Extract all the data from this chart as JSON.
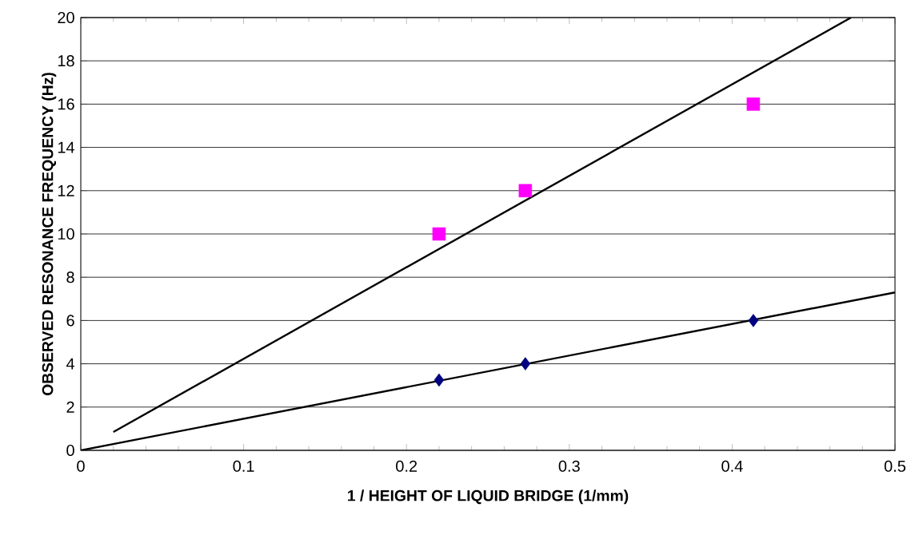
{
  "chart_data": {
    "type": "scatter",
    "xlabel": "1 / HEIGHT OF LIQUID BRIDGE (1/mm)",
    "ylabel": "OBSERVED RESONANCE FREQUENCY (Hz)",
    "xlim": [
      0,
      0.5
    ],
    "ylim": [
      0,
      20
    ],
    "xticks": [
      0,
      0.1,
      0.2,
      0.3,
      0.4,
      0.5
    ],
    "yticks": [
      0,
      2,
      4,
      6,
      8,
      10,
      12,
      14,
      16,
      18,
      20
    ],
    "grid": "y",
    "series": [
      {
        "marker": "square",
        "color": "#ff00ff",
        "x": [
          0.22,
          0.273,
          0.413
        ],
        "values": [
          10,
          12,
          16
        ]
      },
      {
        "marker": "diamond",
        "color": "#000080",
        "x": [
          0.22,
          0.273,
          0.413
        ],
        "values": [
          3.25,
          4.0,
          6.0
        ]
      },
      {
        "type": "line",
        "marker": "none",
        "color": "#000000",
        "x": [
          0.02,
          0.473
        ],
        "values": [
          0.85,
          20
        ]
      },
      {
        "type": "line",
        "marker": "none",
        "color": "#000000",
        "x": [
          0,
          0.5
        ],
        "values": [
          0,
          7.3
        ]
      }
    ]
  }
}
